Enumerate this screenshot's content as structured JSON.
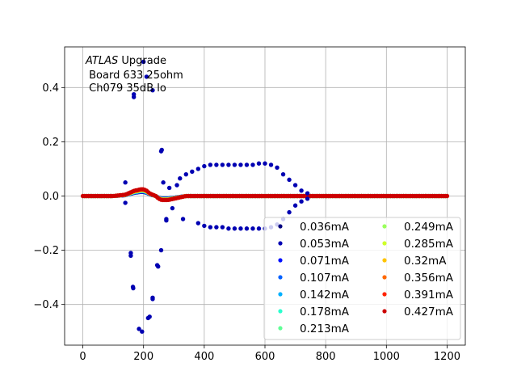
{
  "chart_data": {
    "type": "scatter",
    "title": "",
    "xlabel": "",
    "ylabel": "",
    "xlim": [
      -60,
      1260
    ],
    "ylim": [
      -0.55,
      0.55
    ],
    "xticks": [
      0,
      200,
      400,
      600,
      800,
      1000,
      1200
    ],
    "yticks": [
      -0.4,
      -0.2,
      0.0,
      0.2,
      0.4
    ],
    "grid": true,
    "legend_placement": "lower-right",
    "annotation": {
      "line1_italic": "ATLAS",
      "line1_rest": " Upgrade",
      "line2": " Board 633 25ohm",
      "line3": " Ch079 35dB lo"
    },
    "series": [
      {
        "name": "0.036mA",
        "color": "#00007f"
      },
      {
        "name": "0.053mA",
        "color": "#0000b2"
      },
      {
        "name": "0.071mA",
        "color": "#0010ff"
      },
      {
        "name": "0.107mA",
        "color": "#0060ff"
      },
      {
        "name": "0.142mA",
        "color": "#00b0ff"
      },
      {
        "name": "0.178mA",
        "color": "#29ffce"
      },
      {
        "name": "0.213mA",
        "color": "#60ff96"
      },
      {
        "name": "0.249mA",
        "color": "#9aff5c"
      },
      {
        "name": "0.285mA",
        "color": "#ceff29"
      },
      {
        "name": "0.32mA",
        "color": "#ffc400"
      },
      {
        "name": "0.356mA",
        "color": "#ff6800"
      },
      {
        "name": "0.391mA",
        "color": "#ff2200"
      },
      {
        "name": "0.427mA",
        "color": "#cc0000"
      }
    ],
    "upper_ribbon": {
      "x": [
        0,
        100,
        140,
        150,
        160,
        170,
        180,
        190,
        200,
        210,
        220,
        230,
        240,
        250,
        260,
        280,
        300,
        320,
        340,
        360,
        380,
        400,
        420,
        440,
        460,
        480,
        500,
        520,
        540,
        560,
        580,
        600,
        620,
        640,
        660,
        680,
        700,
        720,
        740,
        760,
        800,
        1200
      ],
      "y": [
        0.0,
        0.0,
        0.005,
        0.01,
        0.015,
        0.02,
        0.022,
        0.025,
        0.025,
        0.02,
        0.01,
        0.005,
        0.0,
        -0.01,
        -0.015,
        -0.015,
        -0.01,
        -0.005,
        0.0,
        0.0,
        0.0,
        0.0,
        0.0,
        0.0,
        0.0,
        0.0,
        0.0,
        0.0,
        0.0,
        0.0,
        0.0,
        0.0,
        0.0,
        0.0,
        0.0,
        0.0,
        0.0,
        0.0,
        0.0,
        0.0,
        0.0,
        0.0
      ]
    },
    "outlier_points": [
      {
        "x": 140,
        "y": 0.05
      },
      {
        "x": 140,
        "y": -0.025
      },
      {
        "x": 158,
        "y": -0.21
      },
      {
        "x": 158,
        "y": -0.22
      },
      {
        "x": 165,
        "y": -0.335
      },
      {
        "x": 166,
        "y": -0.34
      },
      {
        "x": 168,
        "y": 0.365
      },
      {
        "x": 168,
        "y": 0.375
      },
      {
        "x": 185,
        "y": -0.49
      },
      {
        "x": 195,
        "y": -0.5
      },
      {
        "x": 200,
        "y": 0.495
      },
      {
        "x": 210,
        "y": 0.44
      },
      {
        "x": 220,
        "y": -0.445
      },
      {
        "x": 215,
        "y": -0.45
      },
      {
        "x": 230,
        "y": 0.39
      },
      {
        "x": 230,
        "y": -0.375
      },
      {
        "x": 230,
        "y": -0.38
      },
      {
        "x": 245,
        "y": -0.255
      },
      {
        "x": 248,
        "y": -0.26
      },
      {
        "x": 258,
        "y": 0.165
      },
      {
        "x": 260,
        "y": 0.17
      },
      {
        "x": 258,
        "y": -0.2
      },
      {
        "x": 265,
        "y": 0.05
      },
      {
        "x": 275,
        "y": -0.085
      },
      {
        "x": 275,
        "y": -0.09
      },
      {
        "x": 285,
        "y": 0.03
      },
      {
        "x": 295,
        "y": -0.045
      },
      {
        "x": 310,
        "y": 0.04
      },
      {
        "x": 320,
        "y": 0.065
      },
      {
        "x": 330,
        "y": -0.085
      },
      {
        "x": 340,
        "y": 0.08
      },
      {
        "x": 360,
        "y": 0.09
      },
      {
        "x": 380,
        "y": 0.1
      },
      {
        "x": 400,
        "y": 0.11
      },
      {
        "x": 420,
        "y": 0.115
      },
      {
        "x": 440,
        "y": 0.115
      },
      {
        "x": 460,
        "y": 0.115
      },
      {
        "x": 480,
        "y": 0.115
      },
      {
        "x": 500,
        "y": 0.115
      },
      {
        "x": 520,
        "y": 0.115
      },
      {
        "x": 540,
        "y": 0.115
      },
      {
        "x": 560,
        "y": 0.115
      },
      {
        "x": 580,
        "y": 0.12
      },
      {
        "x": 600,
        "y": 0.12
      },
      {
        "x": 620,
        "y": 0.115
      },
      {
        "x": 640,
        "y": 0.105
      },
      {
        "x": 660,
        "y": 0.08
      },
      {
        "x": 680,
        "y": 0.06
      },
      {
        "x": 700,
        "y": 0.04
      },
      {
        "x": 720,
        "y": 0.02
      },
      {
        "x": 740,
        "y": 0.01
      },
      {
        "x": 380,
        "y": -0.1
      },
      {
        "x": 400,
        "y": -0.11
      },
      {
        "x": 420,
        "y": -0.115
      },
      {
        "x": 440,
        "y": -0.115
      },
      {
        "x": 460,
        "y": -0.115
      },
      {
        "x": 480,
        "y": -0.12
      },
      {
        "x": 500,
        "y": -0.12
      },
      {
        "x": 520,
        "y": -0.12
      },
      {
        "x": 540,
        "y": -0.12
      },
      {
        "x": 560,
        "y": -0.12
      },
      {
        "x": 580,
        "y": -0.12
      },
      {
        "x": 600,
        "y": -0.12
      },
      {
        "x": 620,
        "y": -0.115
      },
      {
        "x": 640,
        "y": -0.105
      },
      {
        "x": 660,
        "y": -0.085
      },
      {
        "x": 680,
        "y": -0.06
      },
      {
        "x": 700,
        "y": -0.035
      },
      {
        "x": 720,
        "y": -0.02
      },
      {
        "x": 740,
        "y": -0.01
      }
    ]
  }
}
